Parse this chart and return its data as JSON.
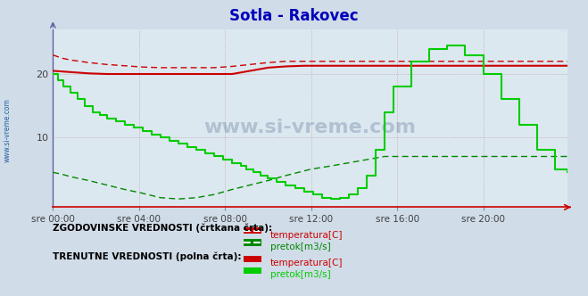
{
  "title": "Sotla - Rakovec",
  "title_color": "#0000cc",
  "bg_color": "#d0dce8",
  "plot_bg_color": "#dce8f0",
  "watermark": "www.si-vreme.com",
  "ylabel_ticks": [
    10,
    20
  ],
  "ylim": [
    -1,
    27
  ],
  "xlim": [
    0,
    287
  ],
  "xtick_labels": [
    "sre 00:00",
    "sre 04:00",
    "sre 08:00",
    "sre 12:00",
    "sre 16:00",
    "sre 20:00"
  ],
  "xtick_positions": [
    0,
    48,
    96,
    144,
    192,
    240
  ],
  "legend_text1": "ZGODOVINSKE VREDNOSTI (črtkana črta):",
  "legend_text2": "TRENUTNE VREDNOSTI (polna črta):",
  "legend_item1a": "temperatura[C]",
  "legend_item1b": "pretok[m3/s]",
  "legend_item2a": "temperatura[C]",
  "legend_item2b": "pretok[m3/s]",
  "red_dashed_temp_x": [
    0,
    5,
    10,
    20,
    30,
    40,
    50,
    60,
    70,
    80,
    90,
    100,
    110,
    120,
    130,
    140,
    150,
    160,
    170,
    180,
    190,
    200,
    210,
    220,
    230,
    240,
    250,
    260,
    270,
    280,
    287
  ],
  "red_dashed_temp_y": [
    23,
    22.5,
    22.2,
    21.8,
    21.5,
    21.3,
    21.1,
    21.0,
    21.0,
    21.0,
    21.0,
    21.2,
    21.5,
    21.8,
    22.0,
    22.0,
    22.0,
    22.0,
    22.0,
    22.0,
    22.0,
    22.0,
    22.0,
    22.0,
    22.0,
    22.0,
    22.0,
    22.0,
    22.0,
    22.0,
    22.0
  ],
  "green_dashed_flow_x": [
    0,
    5,
    10,
    20,
    30,
    40,
    50,
    60,
    70,
    80,
    90,
    100,
    110,
    120,
    130,
    144,
    155,
    165,
    175,
    185,
    200,
    210,
    220,
    230,
    240,
    250,
    260,
    270,
    280,
    287
  ],
  "green_dashed_flow_y": [
    4.5,
    4.2,
    3.8,
    3.2,
    2.5,
    1.8,
    1.2,
    0.5,
    0.3,
    0.5,
    1.0,
    1.8,
    2.5,
    3.2,
    4.0,
    5.0,
    5.5,
    6.0,
    6.5,
    7.0,
    7.0,
    7.0,
    7.0,
    7.0,
    7.0,
    7.0,
    7.0,
    7.0,
    7.0,
    7.0
  ],
  "red_solid_temp_x": [
    0,
    10,
    20,
    30,
    40,
    50,
    60,
    70,
    80,
    90,
    100,
    110,
    120,
    130,
    140,
    150,
    160,
    170,
    180,
    190,
    200,
    210,
    220,
    230,
    240,
    250,
    260,
    270,
    280,
    287
  ],
  "red_solid_temp_y": [
    20.5,
    20.3,
    20.1,
    20.0,
    20.0,
    20.0,
    20.0,
    20.0,
    20.0,
    20.0,
    20.0,
    20.5,
    21.0,
    21.2,
    21.3,
    21.3,
    21.3,
    21.3,
    21.3,
    21.3,
    21.3,
    21.3,
    21.3,
    21.3,
    21.3,
    21.3,
    21.3,
    21.3,
    21.3,
    21.3
  ],
  "green_solid_flow_x": [
    0,
    3,
    6,
    10,
    14,
    18,
    22,
    26,
    30,
    35,
    40,
    45,
    50,
    55,
    60,
    65,
    70,
    75,
    80,
    85,
    90,
    95,
    100,
    105,
    108,
    112,
    116,
    120,
    125,
    130,
    135,
    140,
    145,
    150,
    155,
    160,
    165,
    170,
    175,
    180,
    185,
    190,
    200,
    210,
    220,
    230,
    240,
    250,
    260,
    270,
    280,
    287
  ],
  "green_solid_flow_y": [
    20,
    19,
    18,
    17,
    16,
    15,
    14,
    13.5,
    13,
    12.5,
    12,
    11.5,
    11,
    10.5,
    10,
    9.5,
    9,
    8.5,
    8,
    7.5,
    7,
    6.5,
    6,
    5.5,
    5,
    4.5,
    4,
    3.5,
    3,
    2.5,
    2,
    1.5,
    1,
    0.5,
    0.3,
    0.5,
    1,
    2,
    4,
    8,
    14,
    18,
    22,
    24,
    24.5,
    23,
    20,
    16,
    12,
    8,
    5,
    4.5
  ]
}
